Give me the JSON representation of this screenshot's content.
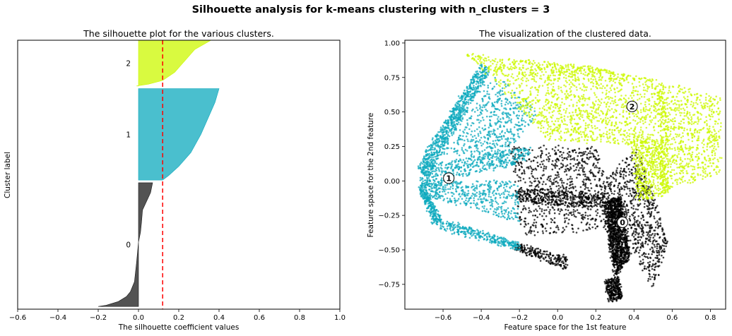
{
  "figure": {
    "suptitle": "Silhouette analysis for k-means clustering with n_clusters = 3"
  },
  "chart_data": [
    {
      "type": "area",
      "title": "The silhouette plot for the various clusters.",
      "xlabel": "The silhouette coefficient values",
      "ylabel": "Cluster label",
      "xlim": [
        -0.6,
        1.0
      ],
      "x_ticks": [
        "−0.6",
        "−0.4",
        "−0.2",
        "0.0",
        "0.2",
        "0.4",
        "0.6",
        "0.8",
        "1.0"
      ],
      "x_tick_values": [
        -0.6,
        -0.4,
        -0.2,
        0.0,
        0.2,
        0.4,
        0.6,
        0.8,
        1.0
      ],
      "ylim": [
        0,
        1000
      ],
      "average_silhouette_score": 0.12,
      "average_line_color": "#ff0000",
      "clusters": [
        {
          "label": "0",
          "color": "#1a1a1a",
          "y_lower": 10,
          "y_upper": 470,
          "sorted_silhouette_profile": [
            [
              0,
              -0.2
            ],
            [
              0.01,
              -0.16
            ],
            [
              0.04,
              -0.1
            ],
            [
              0.08,
              -0.06
            ],
            [
              0.12,
              -0.04
            ],
            [
              0.2,
              -0.02
            ],
            [
              0.35,
              -0.01
            ],
            [
              0.52,
              0.0
            ],
            [
              0.6,
              0.01
            ],
            [
              0.68,
              0.015
            ],
            [
              0.78,
              0.02
            ],
            [
              0.85,
              0.04
            ],
            [
              0.92,
              0.06
            ],
            [
              1.0,
              0.07
            ]
          ]
        },
        {
          "label": "1",
          "color": "#0ea9bd",
          "y_lower": 480,
          "y_upper": 820,
          "sorted_silhouette_profile": [
            [
              0,
              0.12
            ],
            [
              0.05,
              0.15
            ],
            [
              0.15,
              0.2
            ],
            [
              0.3,
              0.26
            ],
            [
              0.5,
              0.31
            ],
            [
              0.7,
              0.35
            ],
            [
              0.85,
              0.38
            ],
            [
              1.0,
              0.4
            ]
          ]
        },
        {
          "label": "2",
          "color": "#ccf800",
          "y_lower": 830,
          "y_upper": 1000,
          "clipped_at_top": true,
          "sorted_silhouette_profile": [
            [
              0,
              -0.01
            ],
            [
              0.04,
              0.05
            ],
            [
              0.12,
              0.12
            ],
            [
              0.3,
              0.18
            ],
            [
              0.55,
              0.23
            ],
            [
              0.8,
              0.28
            ],
            [
              1.0,
              0.36
            ]
          ]
        }
      ]
    },
    {
      "type": "scatter",
      "title": "The visualization of the clustered data.",
      "xlabel": "Feature space for the 1st feature",
      "ylabel": "Feature space for the 2nd feature",
      "xlim": [
        -0.8,
        0.88
      ],
      "ylim": [
        -0.93,
        1.02
      ],
      "x_ticks": [
        "−0.6",
        "−0.4",
        "−0.2",
        "0.0",
        "0.2",
        "0.4",
        "0.6",
        "0.8"
      ],
      "x_tick_values": [
        -0.6,
        -0.4,
        -0.2,
        0.0,
        0.2,
        0.4,
        0.6,
        0.8
      ],
      "y_ticks": [
        "−0.75",
        "−0.50",
        "−0.25",
        "0.00",
        "0.25",
        "0.50",
        "0.75",
        "1.00"
      ],
      "y_tick_values": [
        -0.75,
        -0.5,
        -0.25,
        0.0,
        0.25,
        0.5,
        0.75,
        1.0
      ],
      "cluster_centers": [
        {
          "label": "0",
          "x": 0.34,
          "y": -0.3
        },
        {
          "label": "1",
          "x": -0.57,
          "y": 0.02
        },
        {
          "label": "2",
          "x": 0.39,
          "y": 0.54
        }
      ],
      "series": [
        {
          "label": "0",
          "color": "#000000",
          "regions": [
            {
              "kind": "quad",
              "points": [
                [
                  0.24,
                  -0.15
                ],
                [
                  0.33,
                  -0.12
                ],
                [
                  0.38,
                  -0.55
                ],
                [
                  0.3,
                  -0.7
                ]
              ],
              "weight": 1200
            },
            {
              "kind": "quad",
              "points": [
                [
                  0.25,
                  -0.72
                ],
                [
                  0.32,
                  -0.7
                ],
                [
                  0.34,
                  -0.85
                ],
                [
                  0.27,
                  -0.88
                ]
              ],
              "weight": 300
            },
            {
              "kind": "quad",
              "points": [
                [
                  0.22,
                  -0.02
                ],
                [
                  0.42,
                  0.25
                ],
                [
                  0.58,
                  -0.45
                ],
                [
                  0.5,
                  -0.78
                ]
              ],
              "weight": 700
            },
            {
              "kind": "quad",
              "points": [
                [
                  -0.25,
                  0.25
                ],
                [
                  0.2,
                  0.25
                ],
                [
                  0.28,
                  -0.15
                ],
                [
                  -0.2,
                  -0.15
                ]
              ],
              "weight": 550
            },
            {
              "kind": "quad",
              "points": [
                [
                  -0.22,
                  -0.05
                ],
                [
                  0.25,
                  -0.1
                ],
                [
                  0.25,
                  -0.2
                ],
                [
                  -0.22,
                  -0.15
                ]
              ],
              "weight": 350
            },
            {
              "kind": "quad",
              "points": [
                [
                  -0.22,
                  -0.15
                ],
                [
                  0.25,
                  -0.15
                ],
                [
                  0.28,
                  -0.35
                ],
                [
                  -0.18,
                  -0.4
                ]
              ],
              "weight": 250
            },
            {
              "kind": "quad",
              "points": [
                [
                  -0.22,
                  -0.45
                ],
                [
                  0.05,
                  -0.55
                ],
                [
                  0.05,
                  -0.65
                ],
                [
                  -0.22,
                  -0.5
                ]
              ],
              "weight": 220
            }
          ]
        },
        {
          "label": "1",
          "color": "#0ea9bd",
          "regions": [
            {
              "kind": "quad",
              "points": [
                [
                  -0.74,
                  0.1
                ],
                [
                  -0.4,
                  0.85
                ],
                [
                  -0.35,
                  0.8
                ],
                [
                  -0.68,
                  0.02
                ]
              ],
              "weight": 800
            },
            {
              "kind": "quad",
              "points": [
                [
                  -0.74,
                  0.1
                ],
                [
                  -0.15,
                  0.25
                ],
                [
                  -0.15,
                  0.15
                ],
                [
                  -0.7,
                  -0.05
                ]
              ],
              "weight": 450
            },
            {
              "kind": "quad",
              "points": [
                [
                  -0.72,
                  0.0
                ],
                [
                  -0.2,
                  0.0
                ],
                [
                  -0.2,
                  -0.3
                ],
                [
                  -0.72,
                  -0.1
                ]
              ],
              "weight": 500
            },
            {
              "kind": "quad",
              "points": [
                [
                  -0.72,
                  -0.05
                ],
                [
                  -0.65,
                  -0.32
                ],
                [
                  -0.6,
                  -0.3
                ],
                [
                  -0.68,
                  -0.1
                ]
              ],
              "weight": 220
            },
            {
              "kind": "quad",
              "points": [
                [
                  -0.62,
                  -0.35
                ],
                [
                  -0.2,
                  -0.5
                ],
                [
                  -0.2,
                  -0.45
                ],
                [
                  -0.6,
                  -0.28
                ]
              ],
              "weight": 300
            },
            {
              "kind": "quad",
              "points": [
                [
                  -0.6,
                  0.2
                ],
                [
                  -0.32,
                  0.78
                ],
                [
                  -0.1,
                  0.5
                ],
                [
                  -0.3,
                  0.15
                ]
              ],
              "weight": 500
            }
          ]
        },
        {
          "label": "2",
          "color": "#ccf800",
          "regions": [
            {
              "kind": "quad",
              "points": [
                [
                  -0.48,
                  0.92
                ],
                [
                  0.2,
                  0.82
                ],
                [
                  0.55,
                  0.72
                ],
                [
                  -0.35,
                  0.75
                ]
              ],
              "weight": 500
            },
            {
              "kind": "quad",
              "points": [
                [
                  -0.35,
                  0.75
                ],
                [
                  0.55,
                  0.72
                ],
                [
                  0.5,
                  0.25
                ],
                [
                  -0.05,
                  0.3
                ]
              ],
              "weight": 1000
            },
            {
              "kind": "quad",
              "points": [
                [
                  0.52,
                  0.72
                ],
                [
                  0.56,
                  0.7
                ],
                [
                  0.6,
                  -0.05
                ],
                [
                  0.55,
                  -0.1
                ]
              ],
              "weight": 250
            },
            {
              "kind": "quad",
              "points": [
                [
                  0.55,
                  0.72
                ],
                [
                  0.85,
                  0.6
                ],
                [
                  0.85,
                  0.05
                ],
                [
                  0.6,
                  -0.05
                ]
              ],
              "weight": 600
            },
            {
              "kind": "quad",
              "points": [
                [
                  0.38,
                  0.3
                ],
                [
                  0.55,
                  0.3
                ],
                [
                  0.58,
                  -0.1
                ],
                [
                  0.42,
                  -0.15
                ]
              ],
              "weight": 500
            }
          ]
        }
      ]
    }
  ]
}
